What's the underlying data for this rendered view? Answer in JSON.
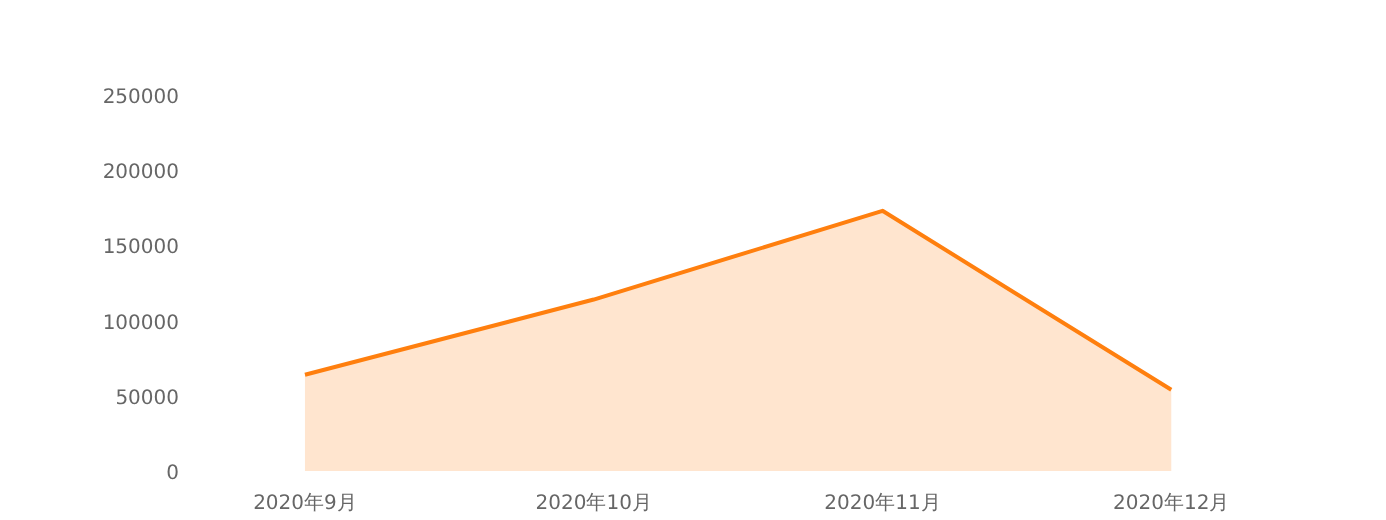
{
  "chart_data": {
    "type": "area",
    "categories": [
      "2020年9月",
      "2020年10月",
      "2020年11月",
      "2020年12月"
    ],
    "series": [
      {
        "color": "#ff7f0e",
        "values": [
          64000,
          114000,
          173000,
          54000
        ]
      }
    ],
    "ylim": [
      0,
      250000
    ],
    "yticks": [
      0,
      50000,
      100000,
      150000,
      200000,
      250000
    ],
    "grid": false
  }
}
